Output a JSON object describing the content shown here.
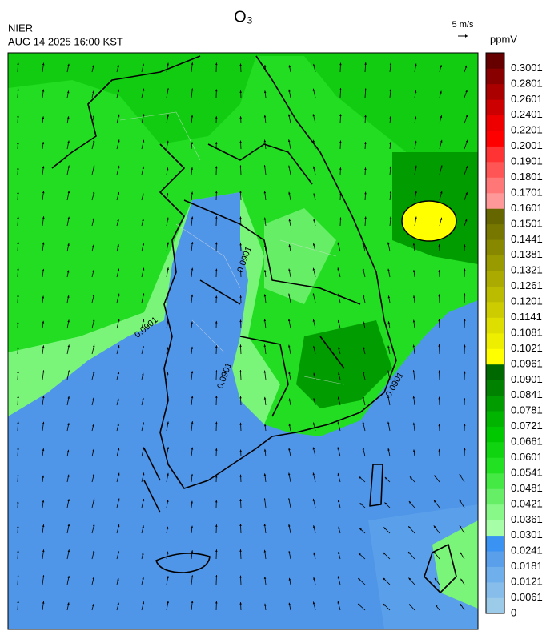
{
  "header": {
    "title": "O₃",
    "agency": "NIER",
    "datetime": "AUG 14 2025 16:00 KST",
    "wind_scale": "5 m/s"
  },
  "colorbar": {
    "unit": "ppmV",
    "levels": [
      0,
      0.0061,
      0.0121,
      0.0181,
      0.0241,
      0.0301,
      0.0361,
      0.0421,
      0.0481,
      0.0541,
      0.0601,
      0.0661,
      0.0721,
      0.0781,
      0.0841,
      0.0901,
      0.0961,
      0.1021,
      0.1081,
      0.1141,
      0.1201,
      0.1261,
      0.1321,
      0.1381,
      0.1441,
      0.1501,
      0.1601,
      0.1701,
      0.1801,
      0.1901,
      0.2001,
      0.2201,
      0.2401,
      0.2601,
      0.2801,
      0.3001
    ],
    "colors": [
      "#9ccbe9",
      "#86bdea",
      "#6fb0ec",
      "#5a9fe9",
      "#3a93f2",
      "#a6ffa6",
      "#88f888",
      "#66ee66",
      "#44e944",
      "#22e022",
      "#11d411",
      "#00c800",
      "#00b400",
      "#009c00",
      "#008200",
      "#006800",
      "#ffff00",
      "#eeee00",
      "#dede00",
      "#cccc00",
      "#bbbb00",
      "#aaaa00",
      "#999900",
      "#888800",
      "#777700",
      "#666600",
      "#ff9999",
      "#ff7777",
      "#ff5555",
      "#ff3333",
      "#ff0000",
      "#ee0000",
      "#cc0000",
      "#aa0000",
      "#880000",
      "#660000"
    ]
  },
  "map": {
    "contour_labels": [
      "0.0901",
      "0.0901",
      "0.0901",
      "0.0901"
    ]
  }
}
